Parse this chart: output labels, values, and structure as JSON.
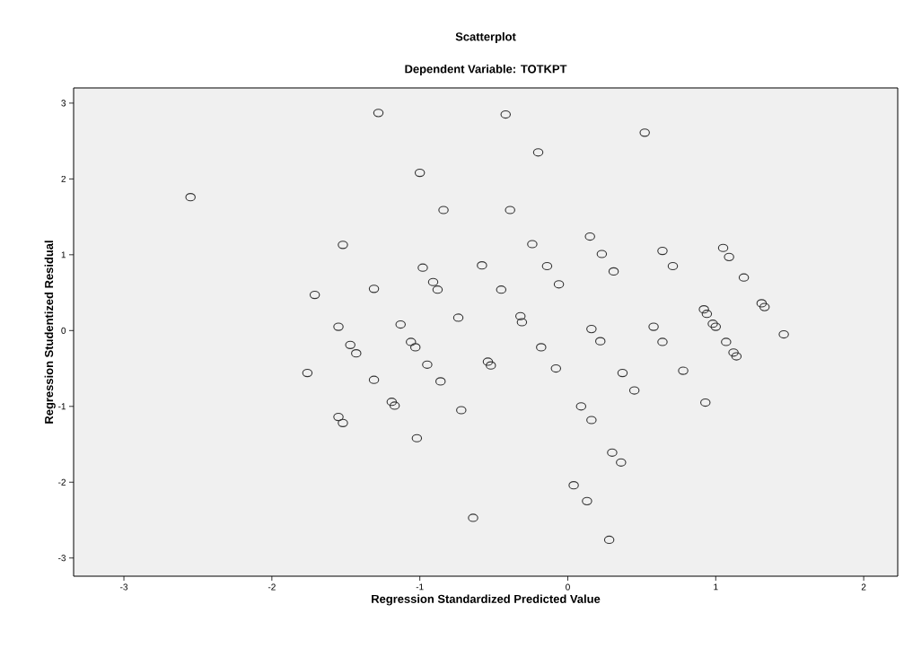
{
  "chart_data": {
    "type": "scatter",
    "title": "Scatterplot",
    "subtitle": "Dependent Variable: TOTKPT",
    "xlabel": "Regression Standardized Predicted Value",
    "ylabel": "Regression Studentized Residual",
    "series": [
      {
        "color": "#333333",
        "x": [
          -1.28,
          -2.55,
          -1.0,
          -0.84,
          -1.52,
          -0.58,
          -0.98,
          -0.91,
          -0.88,
          -1.31,
          -1.71,
          -1.55,
          -1.13,
          -0.74,
          -0.42,
          0.52,
          -0.2,
          -0.39,
          0.15,
          -0.24,
          0.23,
          0.64,
          1.05,
          1.09,
          -0.14,
          0.31,
          0.71,
          -0.45,
          -0.06,
          1.19,
          1.31,
          1.33,
          -0.32,
          -0.31,
          0.16,
          0.58,
          0.92,
          0.94,
          0.98,
          1.0,
          1.46,
          0.22,
          0.64,
          1.07,
          1.12,
          1.14,
          -0.18,
          -0.54,
          -0.52,
          -0.08,
          0.37,
          0.78,
          0.45,
          0.93,
          0.09,
          0.16,
          0.3,
          0.36,
          0.04,
          0.13,
          -0.64,
          0.28,
          -1.47,
          -1.43,
          -1.06,
          -1.03,
          -0.95,
          -0.86,
          -1.76,
          -1.31,
          -1.19,
          -1.17,
          -0.72,
          -1.55,
          -1.52,
          -1.02
        ],
        "values": [
          2.87,
          1.76,
          2.08,
          1.59,
          1.13,
          0.86,
          0.83,
          0.64,
          0.54,
          0.55,
          0.47,
          0.05,
          0.08,
          0.17,
          2.85,
          2.61,
          2.35,
          1.59,
          1.24,
          1.14,
          1.01,
          1.05,
          1.09,
          0.97,
          0.85,
          0.78,
          0.85,
          0.54,
          0.61,
          0.7,
          0.36,
          0.31,
          0.19,
          0.11,
          0.02,
          0.05,
          0.28,
          0.22,
          0.09,
          0.05,
          -0.05,
          -0.14,
          -0.15,
          -0.15,
          -0.29,
          -0.34,
          -0.22,
          -0.41,
          -0.46,
          -0.5,
          -0.56,
          -0.53,
          -0.79,
          -0.95,
          -1.0,
          -1.18,
          -1.61,
          -1.74,
          -2.04,
          -2.25,
          -2.47,
          -2.76,
          -0.19,
          -0.3,
          -0.15,
          -0.22,
          -0.45,
          -0.67,
          -0.56,
          -0.65,
          -0.94,
          -0.99,
          -1.05,
          -1.14,
          -1.22,
          -1.42
        ]
      }
    ],
    "xlim": [
      -3.34,
      2.23
    ],
    "ylim": [
      -3.24,
      3.2
    ],
    "xticks": [
      -3,
      -2,
      -1,
      0,
      1,
      2
    ],
    "yticks": [
      -3,
      -2,
      -1,
      0,
      1,
      2,
      3
    ],
    "marker": "circle"
  }
}
